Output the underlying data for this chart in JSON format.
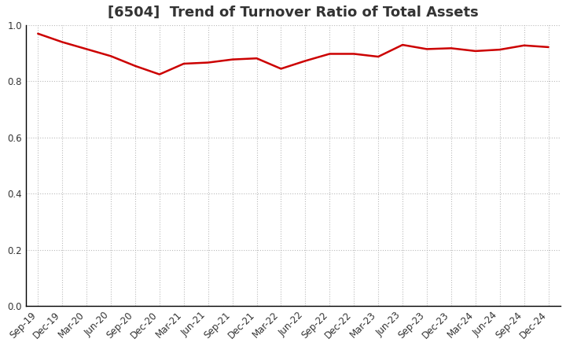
{
  "title": "[6504]  Trend of Turnover Ratio of Total Assets",
  "x_labels": [
    "Sep-19",
    "Dec-19",
    "Mar-20",
    "Jun-20",
    "Sep-20",
    "Dec-20",
    "Mar-21",
    "Jun-21",
    "Sep-21",
    "Dec-21",
    "Mar-22",
    "Jun-22",
    "Sep-22",
    "Dec-22",
    "Mar-23",
    "Jun-23",
    "Sep-23",
    "Dec-23",
    "Mar-24",
    "Jun-24",
    "Sep-24",
    "Dec-24"
  ],
  "y_values": [
    0.97,
    0.94,
    0.915,
    0.89,
    0.855,
    0.825,
    0.863,
    0.867,
    0.878,
    0.882,
    0.845,
    0.873,
    0.898,
    0.898,
    0.888,
    0.93,
    0.915,
    0.918,
    0.908,
    0.913,
    0.928,
    0.922
  ],
  "line_color": "#cc0000",
  "line_width": 1.8,
  "ylim": [
    0.0,
    1.0
  ],
  "yticks": [
    0.0,
    0.2,
    0.4,
    0.6,
    0.8,
    1.0
  ],
  "background_color": "#ffffff",
  "grid_color": "#aaaaaa",
  "title_fontsize": 13,
  "axis_fontsize": 8.5,
  "title_color": "#333333"
}
